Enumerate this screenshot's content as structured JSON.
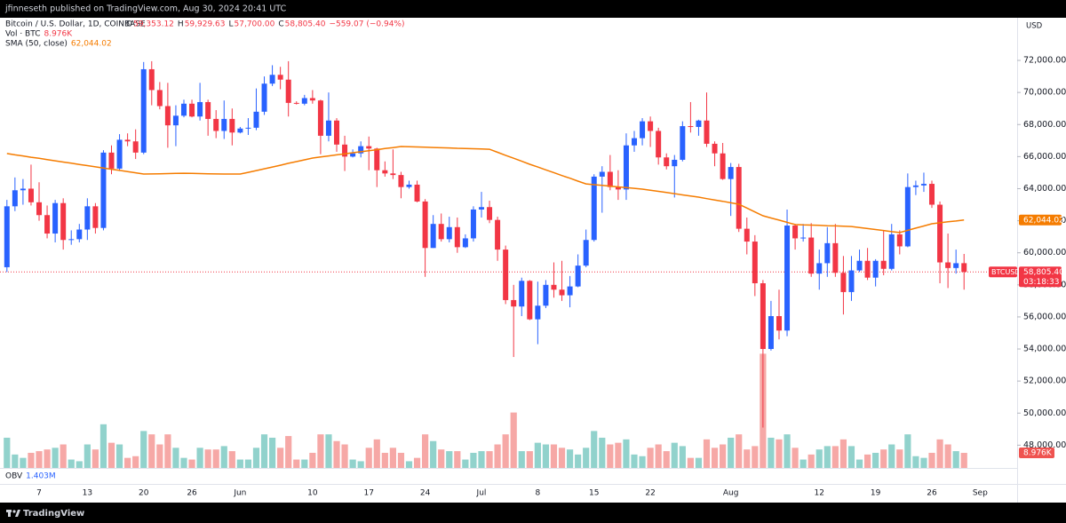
{
  "header": "jfinneseth published on TradingView.com, Aug 30, 2024 20:41 UTC",
  "footer": "TradingView",
  "chart_data": {
    "type": "candlestick",
    "title": "Bitcoin / U.S. Dollar, 1D, COINBASE",
    "legend_ohlc": [
      {
        "key": "O",
        "value": "59,353.12"
      },
      {
        "key": "H",
        "value": "59,929.63"
      },
      {
        "key": "L",
        "value": "57,700.00"
      },
      {
        "key": "C",
        "value": "58,805.40"
      }
    ],
    "change": "−559.07 (−0.94%)",
    "volume_name": "Vol · BTC",
    "volume_label": "8.976K",
    "obv_name": "OBV",
    "obv_label": "1.403M",
    "currency": "USD",
    "symbol": "BTCUSD",
    "last_price_label": "58,805.40",
    "countdown": "03:18:33",
    "up_color": "#2962ff",
    "down_color": "#f23645",
    "volume_up_color": "#26a69a",
    "volume_down_color": "#ef5350",
    "categories": [
      null,
      null,
      null,
      null,
      "7",
      null,
      null,
      null,
      null,
      null,
      "13",
      null,
      null,
      null,
      null,
      null,
      null,
      "20",
      null,
      null,
      null,
      null,
      null,
      "26",
      null,
      null,
      null,
      null,
      null,
      "Jun",
      null,
      null,
      null,
      null,
      null,
      null,
      null,
      null,
      "10",
      null,
      null,
      null,
      null,
      null,
      null,
      "17",
      null,
      null,
      null,
      null,
      null,
      null,
      "24",
      null,
      null,
      null,
      null,
      null,
      null,
      "Jul",
      null,
      null,
      null,
      null,
      null,
      null,
      "8",
      null,
      null,
      null,
      null,
      null,
      null,
      "15",
      null,
      null,
      null,
      null,
      null,
      null,
      "22",
      null,
      null,
      null,
      null,
      null,
      null,
      null,
      null,
      null,
      "Aug",
      null,
      null,
      null,
      null,
      null,
      null,
      null,
      null,
      null,
      null,
      "12",
      null,
      null,
      null,
      null,
      null,
      null,
      "19",
      null,
      null,
      null,
      null,
      null,
      null,
      "26",
      null,
      null,
      null,
      null,
      null,
      "Sep"
    ],
    "open": [
      59100,
      62900,
      63900,
      64000,
      63150,
      62350,
      61200,
      63100,
      60800,
      60850,
      61450,
      62900,
      61550,
      66250,
      65250,
      67050,
      66950,
      66250,
      71450,
      70150,
      69150,
      67950,
      68550,
      69300,
      68500,
      69400,
      68350,
      67600,
      68350,
      67500,
      67750,
      67800,
      68800,
      70550,
      71100,
      70800,
      69350,
      69300,
      69650,
      69500,
      67300,
      68250,
      66750,
      66000,
      66200,
      66650,
      66500,
      65150,
      64950,
      64850,
      64100,
      64250,
      63200,
      60300,
      61800,
      60850,
      61600,
      60350,
      60900,
      62700,
      62850,
      62050,
      60200,
      57050,
      56650,
      58250,
      55850,
      56700,
      58000,
      57700,
      57350,
      57900,
      59200,
      60800,
      64750,
      65050,
      64100,
      63950,
      66700,
      67150,
      68200,
      67600,
      65950,
      65400,
      65800,
      67900,
      67850,
      68250,
      66800,
      66200,
      64600,
      65350,
      61500,
      60700,
      58100,
      54000,
      56050,
      55150,
      61700,
      60900,
      60950,
      58700,
      59350,
      60600,
      58750,
      57550,
      58900,
      59500,
      58450,
      59500,
      59000,
      61150,
      60400,
      64100,
      64200,
      64300,
      63000,
      59400,
      59050,
      59353.12,
      null,
      null
    ],
    "high": [
      63300,
      64700,
      64600,
      65500,
      64400,
      62950,
      63300,
      63400,
      61400,
      61800,
      63400,
      63100,
      66400,
      66700,
      67400,
      67450,
      67700,
      71900,
      71950,
      70650,
      70600,
      69200,
      69550,
      69550,
      70600,
      69550,
      68900,
      69500,
      69000,
      67850,
      68400,
      70250,
      71000,
      71700,
      71600,
      71950,
      69450,
      69850,
      70150,
      69550,
      70000,
      68400,
      67300,
      66450,
      66950,
      67250,
      66550,
      65700,
      66450,
      65050,
      64500,
      64500,
      63350,
      62350,
      62450,
      62250,
      62200,
      61150,
      62900,
      63800,
      63250,
      62250,
      60450,
      58000,
      58450,
      58300,
      58200,
      58300,
      59400,
      59500,
      58550,
      59900,
      61450,
      64900,
      65400,
      66100,
      65150,
      67450,
      67600,
      68400,
      68500,
      67800,
      66200,
      66100,
      68200,
      69400,
      68300,
      70000,
      66950,
      66850,
      65600,
      65550,
      62200,
      61100,
      58300,
      57000,
      57700,
      62700,
      61800,
      61800,
      61850,
      60200,
      61600,
      61800,
      59800,
      59800,
      60200,
      60300,
      59600,
      61400,
      61800,
      61400,
      64950,
      64500,
      65000,
      64500,
      63200,
      61200,
      60200,
      59929.63,
      null,
      null
    ],
    "low": [
      58800,
      62600,
      63000,
      62950,
      62000,
      60900,
      60650,
      60200,
      60500,
      60650,
      60800,
      61200,
      61400,
      64900,
      65100,
      66650,
      65850,
      66150,
      69200,
      68950,
      66550,
      66650,
      68450,
      68450,
      68250,
      67300,
      67150,
      67100,
      66700,
      67450,
      67350,
      67650,
      68600,
      70400,
      70200,
      68500,
      69250,
      69200,
      69300,
      66150,
      66950,
      66300,
      65100,
      65950,
      65950,
      65150,
      64100,
      64750,
      64600,
      63400,
      64000,
      63150,
      58500,
      60300,
      60700,
      60650,
      60000,
      60300,
      60700,
      62200,
      61850,
      59500,
      56800,
      53500,
      56050,
      55800,
      54300,
      56550,
      57200,
      57000,
      56600,
      57850,
      59100,
      60700,
      62500,
      63900,
      63300,
      63300,
      66300,
      66700,
      66600,
      65500,
      65200,
      63450,
      65700,
      67500,
      67300,
      66600,
      65400,
      64550,
      62300,
      61300,
      59900,
      57300,
      49100,
      53900,
      54600,
      54800,
      60200,
      60700,
      58500,
      57700,
      58500,
      58500,
      56150,
      57000,
      58800,
      58300,
      57900,
      58600,
      58900,
      59900,
      60350,
      63600,
      63800,
      62800,
      58100,
      57800,
      58700,
      57700,
      null,
      null
    ],
    "close": [
      62900,
      63900,
      64000,
      63150,
      62350,
      61200,
      63100,
      60800,
      60850,
      61450,
      62900,
      61550,
      66250,
      65250,
      67050,
      66950,
      66250,
      71450,
      70150,
      69150,
      67950,
      68550,
      69300,
      68500,
      69400,
      68350,
      67600,
      68350,
      67500,
      67750,
      67800,
      68800,
      70550,
      71100,
      70800,
      69350,
      69300,
      69650,
      69500,
      67300,
      68250,
      66750,
      66000,
      66200,
      66650,
      66500,
      65150,
      64950,
      64850,
      64100,
      64250,
      63200,
      60300,
      61800,
      60850,
      61600,
      60350,
      60900,
      62700,
      62850,
      62050,
      60200,
      57050,
      56650,
      58250,
      55850,
      56700,
      58000,
      57700,
      57350,
      57900,
      59200,
      60800,
      64750,
      65050,
      64100,
      63950,
      66700,
      67150,
      68200,
      67600,
      65950,
      65400,
      65800,
      67900,
      67850,
      68250,
      66800,
      66200,
      64600,
      65350,
      61500,
      60700,
      58100,
      54000,
      56050,
      55150,
      61700,
      60900,
      60950,
      58700,
      59350,
      60600,
      58750,
      57550,
      58900,
      59500,
      58450,
      59500,
      59000,
      61150,
      60400,
      64100,
      64200,
      64300,
      63000,
      59400,
      59050,
      59350,
      58805.4,
      null,
      null
    ],
    "volume": [
      18,
      8,
      6,
      9,
      10,
      11,
      12,
      14,
      5,
      4,
      14,
      11,
      26,
      15,
      14,
      6,
      7,
      22,
      20,
      14,
      20,
      12,
      6,
      5,
      12,
      11,
      11,
      13,
      10,
      5,
      5,
      12,
      20,
      18,
      12,
      19,
      5,
      5,
      9,
      20,
      20,
      16,
      14,
      5,
      4,
      12,
      17,
      9,
      12,
      9,
      4,
      6,
      20,
      16,
      11,
      10,
      10,
      5,
      9,
      10,
      10,
      14,
      20,
      33,
      10,
      10,
      15,
      14,
      14,
      12,
      11,
      8,
      12,
      22,
      18,
      14,
      15,
      17,
      8,
      7,
      12,
      14,
      10,
      15,
      13,
      6,
      6,
      17,
      12,
      14,
      18,
      20,
      11,
      13,
      68,
      18,
      17,
      20,
      12,
      5,
      8,
      11,
      13,
      13,
      17,
      13,
      5,
      8,
      9,
      11,
      14,
      11,
      20,
      7,
      6,
      9,
      17,
      14,
      10,
      8.976,
      null,
      null
    ],
    "sma": {
      "name": "SMA (50, close)",
      "color": "#f57c00",
      "value_label": "62,044.02",
      "values": [
        66190,
        66110,
        66040,
        65960,
        65890,
        65810,
        65740,
        65660,
        65590,
        65510,
        65440,
        65360,
        65290,
        65210,
        65140,
        65060,
        64990,
        64910,
        64920,
        64930,
        64940,
        64950,
        64960,
        64950,
        64940,
        64930,
        64920,
        64910,
        64910,
        64910,
        65020,
        65130,
        65240,
        65350,
        65460,
        65580,
        65690,
        65800,
        65910,
        65980,
        66040,
        66110,
        66170,
        66240,
        66300,
        66370,
        66430,
        66500,
        66560,
        66630,
        66620,
        66600,
        66590,
        66570,
        66550,
        66540,
        66520,
        66510,
        66490,
        66480,
        66460,
        66270,
        66080,
        65900,
        65710,
        65520,
        65350,
        65170,
        65000,
        64820,
        64650,
        64470,
        64300,
        64250,
        64210,
        64160,
        64110,
        64070,
        64020,
        63970,
        63900,
        63830,
        63760,
        63690,
        63610,
        63540,
        63470,
        63380,
        63290,
        63210,
        63120,
        63030,
        62790,
        62550,
        62310,
        62170,
        62040,
        61900,
        61760,
        61740,
        61730,
        61710,
        61690,
        61680,
        61660,
        61640,
        61580,
        61510,
        61450,
        61390,
        61320,
        61260,
        61400,
        61540,
        61670,
        61810,
        61870,
        61930,
        61980,
        62044.02,
        null,
        null
      ]
    },
    "ylim": [
      46580,
      74660
    ],
    "y2lim": [
      0,
      268
    ],
    "yticks": [
      {
        "value": 48000,
        "label": "48,000.00"
      },
      {
        "value": 50000,
        "label": "50,000.00"
      },
      {
        "value": 52000,
        "label": "52,000.00"
      },
      {
        "value": 54000,
        "label": "54,000.00"
      },
      {
        "value": 56000,
        "label": "56,000.00"
      },
      {
        "value": 58000,
        "label": "58,000.00"
      },
      {
        "value": 60000,
        "label": "60,000.00"
      },
      {
        "value": 62000,
        "label": "62,000.00"
      },
      {
        "value": 64000,
        "label": "64,000.00"
      },
      {
        "value": 66000,
        "label": "66,000.00"
      },
      {
        "value": 68000,
        "label": "68,000.00"
      },
      {
        "value": 70000,
        "label": "70,000.00"
      },
      {
        "value": 72000,
        "label": "72,000.00"
      }
    ],
    "grid": false
  }
}
